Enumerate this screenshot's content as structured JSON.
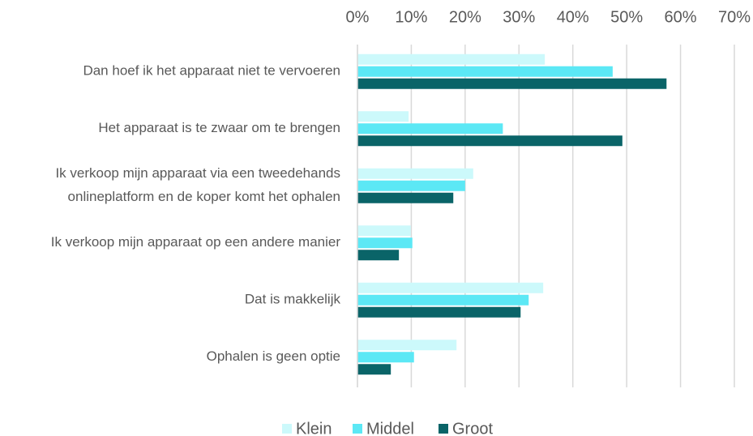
{
  "chart_data": {
    "type": "bar",
    "orientation": "horizontal",
    "categories": [
      "Dan hoef ik het apparaat niet te vervoeren",
      "Het apparaat is te zwaar om te brengen",
      "Ik verkoop mijn apparaat via een tweedehands\nonlineplatform en de koper komt het ophalen",
      "Ik verkoop mijn apparaat op een andere manier",
      "Dat is makkelijk",
      "Ophalen is geen optie"
    ],
    "series": [
      {
        "name": "Klein",
        "color": "#ccf9fb",
        "values": [
          34.8,
          9.5,
          21.5,
          9.9,
          34.5,
          18.4
        ]
      },
      {
        "name": "Middel",
        "color": "#5ce8f5",
        "values": [
          47.4,
          27,
          20,
          10.2,
          31.8,
          10.5
        ]
      },
      {
        "name": "Groot",
        "color": "#0a6468",
        "values": [
          57.4,
          49.2,
          17.8,
          7.7,
          30.3,
          6.2
        ]
      }
    ],
    "xlim": [
      0,
      70
    ],
    "xticks": [
      {
        "value": 0,
        "label": "0%"
      },
      {
        "value": 10,
        "label": "10%"
      },
      {
        "value": 20,
        "label": "20%"
      },
      {
        "value": 30,
        "label": "30%"
      },
      {
        "value": 40,
        "label": "40%"
      },
      {
        "value": 50,
        "label": "50%"
      },
      {
        "value": 60,
        "label": "60%"
      },
      {
        "value": 70,
        "label": "70%"
      }
    ],
    "grid": true,
    "legend": "bottom"
  }
}
